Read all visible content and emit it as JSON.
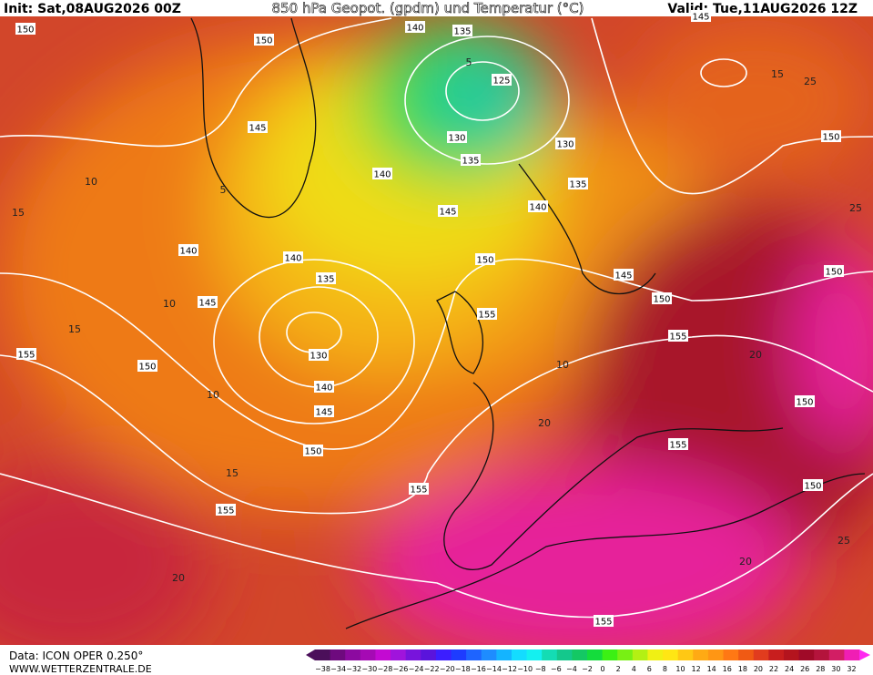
{
  "header": {
    "init": "Init: Sat,08AUG2026 00Z",
    "title": "850 hPa Geopot. (gpdm) und Temperatur (°C)",
    "valid": "Valid: Tue,11AUG2026 12Z"
  },
  "footer": {
    "data": "Data: ICON OPER 0.250°",
    "site": "WWW.WETTERZENTRALE.DE"
  },
  "legend": {
    "labels": [
      "−38",
      "−34",
      "−32",
      "−30",
      "−28",
      "−26",
      "−24",
      "−22",
      "−20",
      "−18",
      "−16",
      "−14",
      "−12",
      "−10",
      "−8",
      "−6",
      "−4",
      "−2",
      "0",
      "2",
      "4",
      "6",
      "8",
      "10",
      "12",
      "14",
      "16",
      "18",
      "20",
      "22",
      "24",
      "26",
      "28",
      "30",
      "32"
    ],
    "colors": [
      "#4b0f5a",
      "#6e0a7e",
      "#8c0aa0",
      "#a50ab4",
      "#c30ad2",
      "#a014dc",
      "#7814dc",
      "#5a14dc",
      "#3c1eff",
      "#1e3cff",
      "#1e64ff",
      "#1e8cff",
      "#14b4ff",
      "#14dcff",
      "#14f0f0",
      "#14dcb4",
      "#14c88c",
      "#14c864",
      "#14dc3c",
      "#3cf014",
      "#78f014",
      "#b4f014",
      "#f0f014",
      "#ffe614",
      "#ffc814",
      "#ffaa14",
      "#ff9614",
      "#ff7814",
      "#f05a14",
      "#e13c1e",
      "#c81e1e",
      "#b4141e",
      "#a00a28",
      "#b4143c",
      "#d21e64",
      "#f01eb4"
    ]
  },
  "geopotential_labels": [
    "150",
    "150",
    "140",
    "135",
    "145",
    "125",
    "130",
    "130",
    "135",
    "135",
    "145",
    "140",
    "145",
    "140",
    "150",
    "140",
    "140",
    "150",
    "145",
    "150",
    "135",
    "145",
    "155",
    "150",
    "155",
    "130",
    "150",
    "155",
    "140",
    "145",
    "150",
    "150",
    "155",
    "155",
    "150",
    "155",
    "155"
  ],
  "temperature_labels": [
    "5",
    "10",
    "15",
    "10",
    "15",
    "10",
    "20",
    "15",
    "20",
    "25",
    "20",
    "15",
    "25",
    "25",
    "20",
    "5",
    "10"
  ]
}
